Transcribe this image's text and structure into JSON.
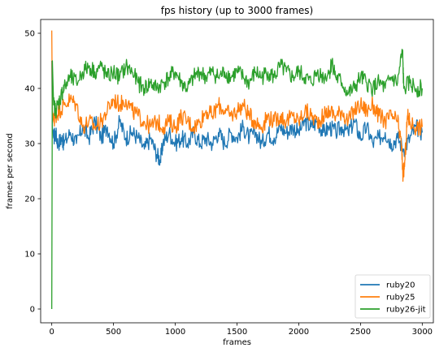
{
  "chart_data": {
    "type": "line",
    "title": "fps history (up to 3000 frames)",
    "xlabel": "frames",
    "ylabel": "frames per second",
    "xlim": [
      -90,
      3090
    ],
    "ylim": [
      -2.5,
      52.5
    ],
    "xticks": [
      0,
      500,
      1000,
      1500,
      2000,
      2500,
      3000
    ],
    "yticks": [
      0,
      10,
      20,
      30,
      40,
      50
    ],
    "legend_position": "lower-right",
    "grid": false,
    "series": [
      {
        "name": "ruby20",
        "color": "#1f77b4",
        "points": [
          [
            0,
            45
          ],
          [
            5,
            33
          ],
          [
            15,
            31
          ],
          [
            30,
            32
          ],
          [
            50,
            30
          ],
          [
            80,
            31
          ],
          [
            100,
            30
          ],
          [
            150,
            32
          ],
          [
            200,
            30
          ],
          [
            250,
            33
          ],
          [
            300,
            31
          ],
          [
            350,
            34
          ],
          [
            400,
            31
          ],
          [
            450,
            33
          ],
          [
            500,
            30
          ],
          [
            550,
            34
          ],
          [
            600,
            31
          ],
          [
            650,
            32
          ],
          [
            700,
            31
          ],
          [
            750,
            29
          ],
          [
            800,
            31
          ],
          [
            850,
            28
          ],
          [
            880,
            27
          ],
          [
            900,
            30
          ],
          [
            950,
            32
          ],
          [
            1000,
            30
          ],
          [
            1050,
            31
          ],
          [
            1100,
            30
          ],
          [
            1150,
            32
          ],
          [
            1200,
            30
          ],
          [
            1250,
            31
          ],
          [
            1300,
            30
          ],
          [
            1350,
            32
          ],
          [
            1400,
            30
          ],
          [
            1450,
            32
          ],
          [
            1500,
            31
          ],
          [
            1550,
            33
          ],
          [
            1600,
            31
          ],
          [
            1650,
            32
          ],
          [
            1700,
            30
          ],
          [
            1750,
            32
          ],
          [
            1800,
            31
          ],
          [
            1850,
            33
          ],
          [
            1900,
            32
          ],
          [
            1950,
            33
          ],
          [
            2000,
            32
          ],
          [
            2050,
            34
          ],
          [
            2100,
            33
          ],
          [
            2150,
            34
          ],
          [
            2200,
            32
          ],
          [
            2250,
            33
          ],
          [
            2300,
            32
          ],
          [
            2350,
            33
          ],
          [
            2400,
            32
          ],
          [
            2450,
            34
          ],
          [
            2500,
            31
          ],
          [
            2550,
            33
          ],
          [
            2600,
            30
          ],
          [
            2650,
            31
          ],
          [
            2700,
            32
          ],
          [
            2750,
            30
          ],
          [
            2800,
            31
          ],
          [
            2850,
            29
          ],
          [
            2900,
            31
          ],
          [
            2950,
            33
          ],
          [
            3000,
            32
          ]
        ]
      },
      {
        "name": "ruby25",
        "color": "#ff7f0e",
        "points": [
          [
            0,
            50.5
          ],
          [
            5,
            36
          ],
          [
            15,
            34
          ],
          [
            30,
            35
          ],
          [
            60,
            36
          ],
          [
            100,
            37
          ],
          [
            150,
            38
          ],
          [
            200,
            37
          ],
          [
            250,
            33
          ],
          [
            300,
            34
          ],
          [
            350,
            33
          ],
          [
            400,
            34
          ],
          [
            450,
            36
          ],
          [
            500,
            38
          ],
          [
            550,
            37
          ],
          [
            600,
            38
          ],
          [
            650,
            36
          ],
          [
            700,
            35
          ],
          [
            750,
            34
          ],
          [
            800,
            33
          ],
          [
            850,
            34
          ],
          [
            900,
            33
          ],
          [
            950,
            34
          ],
          [
            1000,
            33
          ],
          [
            1050,
            35
          ],
          [
            1100,
            34
          ],
          [
            1150,
            33
          ],
          [
            1200,
            34
          ],
          [
            1250,
            36
          ],
          [
            1300,
            35
          ],
          [
            1350,
            37
          ],
          [
            1400,
            36
          ],
          [
            1450,
            35
          ],
          [
            1500,
            36
          ],
          [
            1550,
            37
          ],
          [
            1600,
            35
          ],
          [
            1650,
            34
          ],
          [
            1700,
            33
          ],
          [
            1750,
            35
          ],
          [
            1800,
            34
          ],
          [
            1850,
            35
          ],
          [
            1900,
            34
          ],
          [
            1950,
            35
          ],
          [
            2000,
            34
          ],
          [
            2050,
            36
          ],
          [
            2100,
            35
          ],
          [
            2150,
            34
          ],
          [
            2200,
            35
          ],
          [
            2250,
            36
          ],
          [
            2300,
            35
          ],
          [
            2350,
            36
          ],
          [
            2400,
            34
          ],
          [
            2450,
            36
          ],
          [
            2500,
            37
          ],
          [
            2550,
            36
          ],
          [
            2600,
            37
          ],
          [
            2650,
            35
          ],
          [
            2700,
            34
          ],
          [
            2750,
            35
          ],
          [
            2800,
            34
          ],
          [
            2830,
            30
          ],
          [
            2845,
            24
          ],
          [
            2860,
            27
          ],
          [
            2880,
            35
          ],
          [
            2900,
            34
          ],
          [
            2950,
            33
          ],
          [
            3000,
            33
          ]
        ]
      },
      {
        "name": "ruby26-jit",
        "color": "#2ca02c",
        "points": [
          [
            0,
            0
          ],
          [
            5,
            45
          ],
          [
            15,
            37
          ],
          [
            30,
            36
          ],
          [
            50,
            37
          ],
          [
            80,
            39
          ],
          [
            100,
            40
          ],
          [
            150,
            42
          ],
          [
            200,
            41
          ],
          [
            250,
            43
          ],
          [
            300,
            44
          ],
          [
            350,
            43
          ],
          [
            400,
            44
          ],
          [
            450,
            42
          ],
          [
            500,
            43
          ],
          [
            550,
            42
          ],
          [
            600,
            44
          ],
          [
            650,
            43
          ],
          [
            700,
            41
          ],
          [
            750,
            40
          ],
          [
            800,
            41
          ],
          [
            850,
            40
          ],
          [
            900,
            41
          ],
          [
            950,
            42
          ],
          [
            1000,
            43
          ],
          [
            1050,
            41
          ],
          [
            1100,
            40
          ],
          [
            1150,
            42
          ],
          [
            1200,
            43
          ],
          [
            1250,
            42
          ],
          [
            1300,
            43
          ],
          [
            1350,
            42
          ],
          [
            1400,
            43
          ],
          [
            1450,
            42
          ],
          [
            1500,
            43
          ],
          [
            1550,
            42
          ],
          [
            1600,
            41
          ],
          [
            1650,
            43
          ],
          [
            1700,
            42
          ],
          [
            1750,
            43
          ],
          [
            1800,
            42
          ],
          [
            1850,
            44
          ],
          [
            1900,
            43
          ],
          [
            1950,
            42
          ],
          [
            2000,
            43
          ],
          [
            2050,
            42
          ],
          [
            2100,
            41
          ],
          [
            2150,
            43
          ],
          [
            2200,
            42
          ],
          [
            2250,
            43
          ],
          [
            2270,
            45
          ],
          [
            2300,
            42
          ],
          [
            2350,
            41
          ],
          [
            2400,
            39
          ],
          [
            2450,
            40
          ],
          [
            2500,
            42
          ],
          [
            2550,
            41
          ],
          [
            2600,
            40
          ],
          [
            2650,
            41
          ],
          [
            2700,
            40
          ],
          [
            2750,
            42
          ],
          [
            2800,
            41
          ],
          [
            2840,
            47
          ],
          [
            2850,
            40
          ],
          [
            2900,
            41
          ],
          [
            2950,
            40
          ],
          [
            3000,
            40
          ]
        ]
      }
    ]
  }
}
